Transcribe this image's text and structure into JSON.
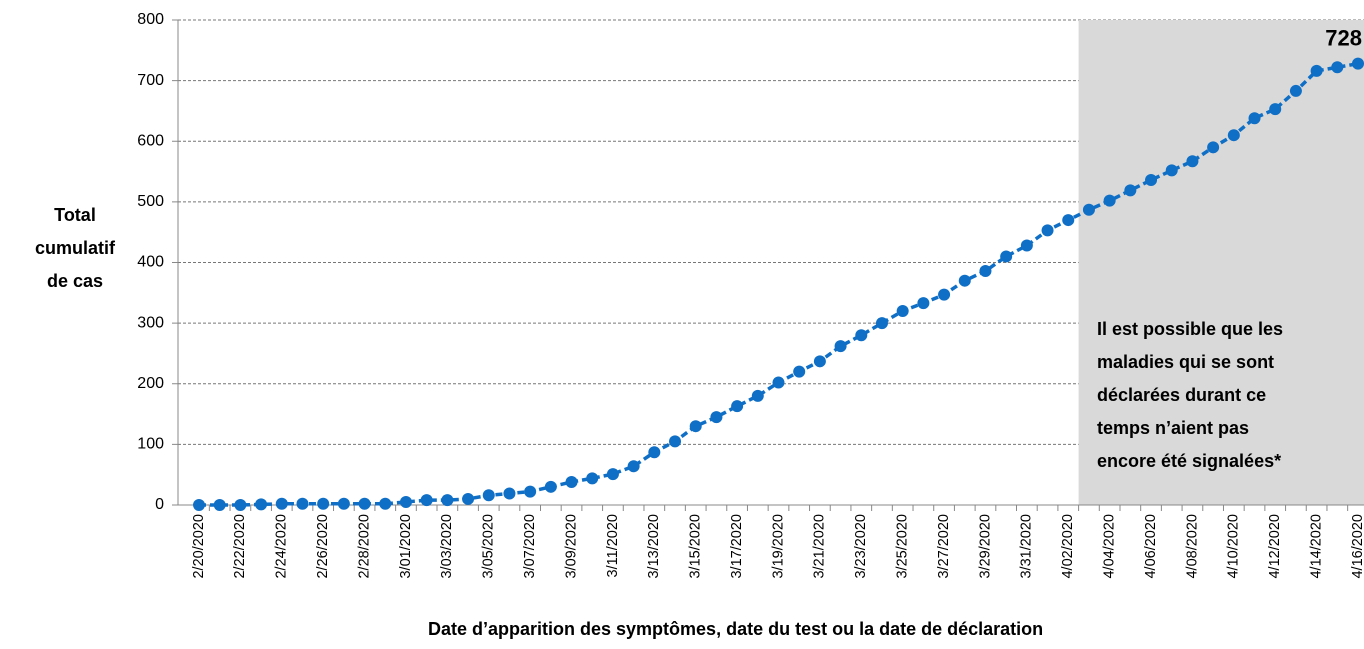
{
  "chart_data": {
    "type": "line",
    "ylabel": [
      "Total",
      "cumulatif",
      "de cas"
    ],
    "xlabel": "Date d’apparition des symptômes, date du test ou la date de déclaration",
    "annotation": [
      "Il est possible que les",
      "maladies qui se sont",
      "déclarées durant ce",
      "temps n’aient pas",
      "encore été signalées*"
    ],
    "categories": [
      "2/20/2020",
      null,
      "2/22/2020",
      null,
      "2/24/2020",
      null,
      "2/26/2020",
      null,
      "2/28/2020",
      null,
      "3/01/2020",
      null,
      "3/03/2020",
      null,
      "3/05/2020",
      null,
      "3/07/2020",
      null,
      "3/09/2020",
      null,
      "3/11/2020",
      null,
      "3/13/2020",
      null,
      "3/15/2020",
      null,
      "3/17/2020",
      null,
      "3/19/2020",
      null,
      "3/21/2020",
      null,
      "3/23/2020",
      null,
      "3/25/2020",
      null,
      "3/27/2020",
      null,
      "3/29/2020",
      null,
      "3/31/2020",
      null,
      "4/02/2020",
      null,
      "4/04/2020",
      null,
      "4/06/2020",
      null,
      "4/08/2020",
      null,
      "4/10/2020",
      null,
      "4/12/2020",
      null,
      "4/14/2020",
      null,
      "4/16/2020"
    ],
    "series": [
      {
        "color": "#0f6fc6",
        "values": [
          0,
          0,
          0,
          1,
          2,
          2,
          2,
          2,
          2,
          2,
          5,
          8,
          8,
          10,
          16,
          19,
          22,
          30,
          38,
          44,
          51,
          64,
          87,
          105,
          130,
          145,
          163,
          180,
          202,
          220,
          237,
          262,
          280,
          300,
          320,
          333,
          347,
          370,
          386,
          410,
          428,
          453,
          470,
          487,
          502,
          519,
          536,
          552,
          567,
          590,
          610,
          638,
          653,
          683,
          716,
          722,
          728
        ]
      }
    ],
    "ylim": [
      0,
      800
    ],
    "yticks": [
      0,
      100,
      200,
      300,
      400,
      500,
      600,
      700,
      800
    ],
    "grid": true
  }
}
